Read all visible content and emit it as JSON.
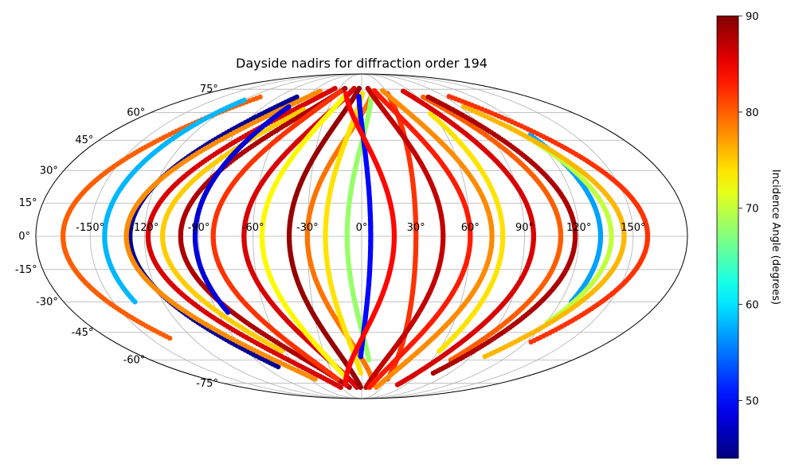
{
  "chart_data": {
    "type": "scatter",
    "projection": "mollweide",
    "title": "Dayside nadirs for diffraction order 194",
    "grid": true,
    "longitude_ticks": [
      {
        "value": -150,
        "label": "-150°"
      },
      {
        "value": -120,
        "label": "-120°"
      },
      {
        "value": -90,
        "label": "-90°"
      },
      {
        "value": -60,
        "label": "-60°"
      },
      {
        "value": -30,
        "label": "-30°"
      },
      {
        "value": 0,
        "label": "0°"
      },
      {
        "value": 30,
        "label": "30°"
      },
      {
        "value": 60,
        "label": "60°"
      },
      {
        "value": 90,
        "label": "90°"
      },
      {
        "value": 120,
        "label": "120°"
      },
      {
        "value": 150,
        "label": "150°"
      }
    ],
    "latitude_ticks": [
      {
        "value": 75,
        "label": "75°"
      },
      {
        "value": 60,
        "label": "60°"
      },
      {
        "value": 45,
        "label": "45°"
      },
      {
        "value": 30,
        "label": "30°"
      },
      {
        "value": 15,
        "label": "15°"
      },
      {
        "value": 0,
        "label": "0°"
      },
      {
        "value": -15,
        "label": "-15°"
      },
      {
        "value": -30,
        "label": "-30°"
      },
      {
        "value": -45,
        "label": "-45°"
      },
      {
        "value": -60,
        "label": "-60°"
      },
      {
        "value": -75,
        "label": "-75°"
      }
    ],
    "colorbar": {
      "label": "Incidence Angle (degrees)",
      "colormap": "jet",
      "range": [
        44,
        90
      ],
      "ticks": [
        {
          "value": 50,
          "label": "50"
        },
        {
          "value": 60,
          "label": "60"
        },
        {
          "value": 70,
          "label": "70"
        },
        {
          "value": 80,
          "label": "80"
        },
        {
          "value": 90,
          "label": "90"
        }
      ]
    },
    "tracks": [
      {
        "lon_peak": -165,
        "lon_base": -95,
        "lat_start": -48,
        "lat_end": 70,
        "incidence": 80
      },
      {
        "lon_peak": -142,
        "lon_base": -112,
        "lat_start": -30,
        "lat_end": 68,
        "incidence": 58
      },
      {
        "lon_peak": -128,
        "lon_base": -55,
        "lat_start": -64,
        "lat_end": 70,
        "incidence": 45
      },
      {
        "lon_peak": -130,
        "lon_base": -40,
        "lat_start": -72,
        "lat_end": 74,
        "incidence": 78
      },
      {
        "lon_peak": -118,
        "lon_base": -28,
        "lat_start": -78,
        "lat_end": 76,
        "incidence": 86
      },
      {
        "lon_peak": -110,
        "lon_base": -20,
        "lat_start": -55,
        "lat_end": 62,
        "incidence": 75
      },
      {
        "lon_peak": -100,
        "lon_base": -15,
        "lat_start": -78,
        "lat_end": 76,
        "incidence": 88
      },
      {
        "lon_peak": -92,
        "lon_base": -55,
        "lat_start": -35,
        "lat_end": 64,
        "incidence": 48
      },
      {
        "lon_peak": -82,
        "lon_base": -18,
        "lat_start": -72,
        "lat_end": 74,
        "incidence": 82
      },
      {
        "lon_peak": -65,
        "lon_base": -5,
        "lat_start": -78,
        "lat_end": 76,
        "incidence": 86
      },
      {
        "lon_peak": -55,
        "lon_base": -10,
        "lat_start": -70,
        "lat_end": 70,
        "incidence": 73
      },
      {
        "lon_peak": -40,
        "lon_base": 0,
        "lat_start": -78,
        "lat_end": 76,
        "incidence": 89
      },
      {
        "lon_peak": -30,
        "lon_base": 20,
        "lat_start": -76,
        "lat_end": 74,
        "incidence": 79
      },
      {
        "lon_peak": -20,
        "lon_base": 5,
        "lat_start": -68,
        "lat_end": 72,
        "incidence": 74
      },
      {
        "lon_peak": -8,
        "lon_base": 15,
        "lat_start": -60,
        "lat_end": 70,
        "incidence": 68
      },
      {
        "lon_peak": 5,
        "lon_base": -5,
        "lat_start": -58,
        "lat_end": 70,
        "incidence": 50
      },
      {
        "lon_peak": 18,
        "lon_base": -25,
        "lat_start": -76,
        "lat_end": 72,
        "incidence": 84
      },
      {
        "lon_peak": 30,
        "lon_base": 30,
        "lat_start": -72,
        "lat_end": 72,
        "incidence": 82
      },
      {
        "lon_peak": 45,
        "lon_base": 5,
        "lat_start": -78,
        "lat_end": 76,
        "incidence": 87
      },
      {
        "lon_peak": 60,
        "lon_base": 10,
        "lat_start": -78,
        "lat_end": 74,
        "incidence": 83
      },
      {
        "lon_peak": 72,
        "lon_base": 20,
        "lat_start": -78,
        "lat_end": 74,
        "incidence": 78
      },
      {
        "lon_peak": 78,
        "lon_base": 45,
        "lat_start": -55,
        "lat_end": 60,
        "incidence": 74
      },
      {
        "lon_peak": 95,
        "lon_base": 45,
        "lat_start": -76,
        "lat_end": 74,
        "incidence": 86
      },
      {
        "lon_peak": 110,
        "lon_base": 55,
        "lat_start": -60,
        "lat_end": 70,
        "incidence": 80
      },
      {
        "lon_peak": 118,
        "lon_base": 60,
        "lat_start": -68,
        "lat_end": 70,
        "incidence": 88
      },
      {
        "lon_peak": 132,
        "lon_base": 100,
        "lat_start": -30,
        "lat_end": 48,
        "incidence": 57
      },
      {
        "lon_peak": 138,
        "lon_base": 80,
        "lat_start": -40,
        "lat_end": 52,
        "incidence": 70
      },
      {
        "lon_peak": 145,
        "lon_base": 70,
        "lat_start": -58,
        "lat_end": 64,
        "incidence": 76
      },
      {
        "lon_peak": 158,
        "lon_base": 80,
        "lat_start": -50,
        "lat_end": 70,
        "incidence": 82
      }
    ]
  }
}
